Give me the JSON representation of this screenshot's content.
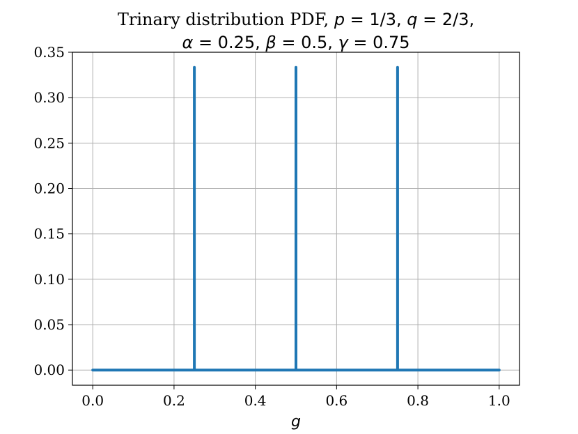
{
  "chart_data": {
    "type": "line",
    "title_line1": {
      "prefix": "Trinary distribution PDF, ",
      "p_sym": "p",
      "p_val": " = 1/3, ",
      "q_sym": "q",
      "q_val": " = 2/3,"
    },
    "title_line2": {
      "a_sym": "α",
      "a_val": " = 0.25, ",
      "b_sym": "β",
      "b_val": " = 0.5, ",
      "g_sym": "γ",
      "g_val": " = 0.75"
    },
    "xlabel": "g",
    "ylabel": "",
    "xlim": [
      -0.05,
      1.05
    ],
    "ylim": [
      -0.0167,
      0.35
    ],
    "xticks": [
      "0.0",
      "0.2",
      "0.4",
      "0.6",
      "0.8",
      "1.0"
    ],
    "yticks": [
      "0.00",
      "0.05",
      "0.10",
      "0.15",
      "0.20",
      "0.25",
      "0.30",
      "0.35"
    ],
    "grid": true,
    "color": "#1f77b4",
    "series": [
      {
        "x": [
          0.0,
          0.25,
          0.25,
          0.25,
          0.5,
          0.5,
          0.5,
          0.75,
          0.75,
          0.75,
          1.0
        ],
        "y": [
          0.0,
          0.0,
          0.3333,
          0.0,
          0.0,
          0.3333,
          0.0,
          0.0,
          0.3333,
          0.0,
          0.0
        ]
      }
    ]
  }
}
